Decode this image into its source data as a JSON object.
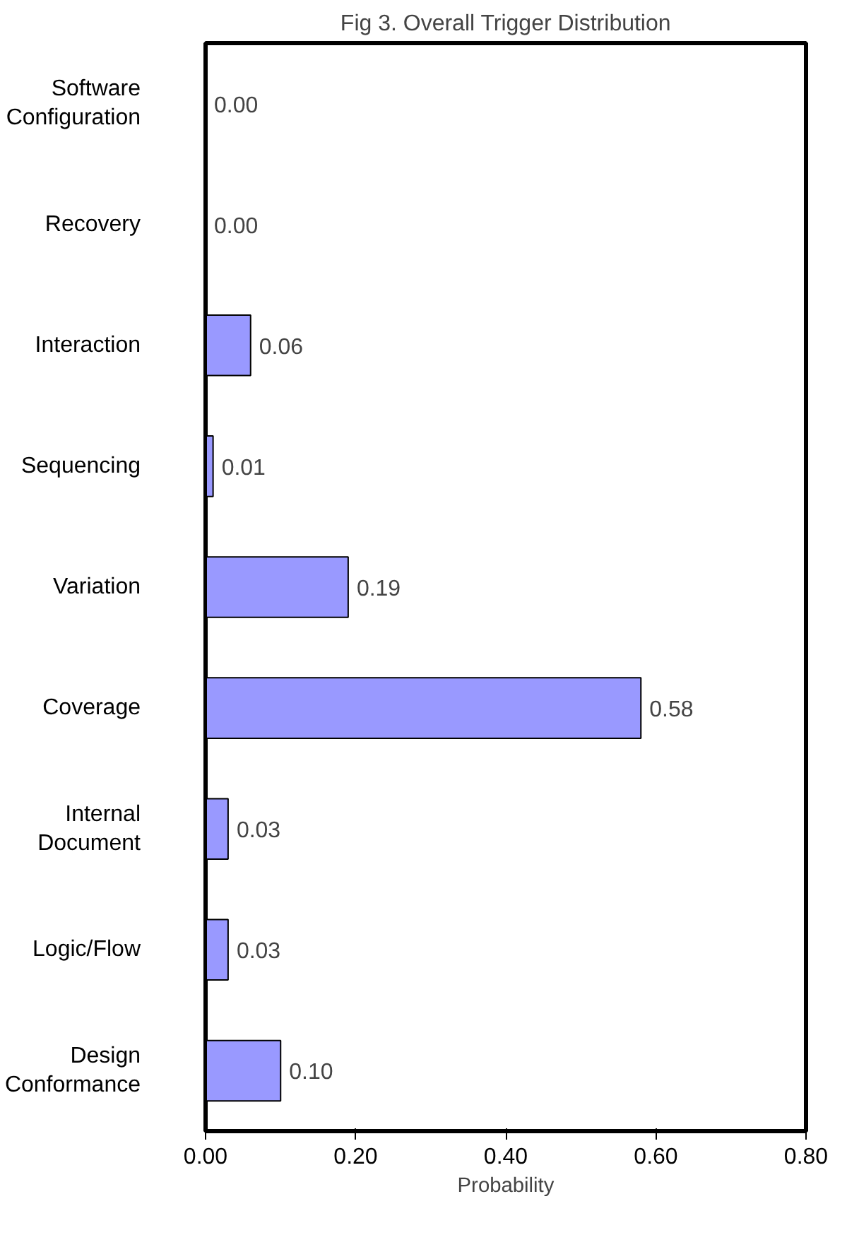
{
  "chart_data": {
    "type": "bar",
    "orientation": "horizontal",
    "title": "Fig 3. Overall Trigger Distribution",
    "xlabel": "Probability",
    "categories": [
      "Software Configuration",
      "Recovery",
      "Interaction",
      "Sequencing",
      "Variation",
      "Coverage",
      "Internal Document",
      "Logic/Flow",
      "Design Conformance"
    ],
    "values": [
      0.0,
      0.0,
      0.06,
      0.01,
      0.19,
      0.58,
      0.03,
      0.03,
      0.1
    ],
    "value_labels": [
      "0.00",
      "0.00",
      "0.06",
      "0.01",
      "0.19",
      "0.58",
      "0.03",
      "0.03",
      "0.10"
    ],
    "color": "#9999ff",
    "grid": false,
    "xlim": [
      0,
      0.8
    ],
    "xticks": [
      {
        "value": 0,
        "label": "0.00"
      },
      {
        "value": 0.2,
        "label": "0.20"
      },
      {
        "value": 0.4,
        "label": "0.40"
      },
      {
        "value": 0.6,
        "label": "0.60"
      },
      {
        "value": 0.8,
        "label": "0.80"
      }
    ]
  }
}
